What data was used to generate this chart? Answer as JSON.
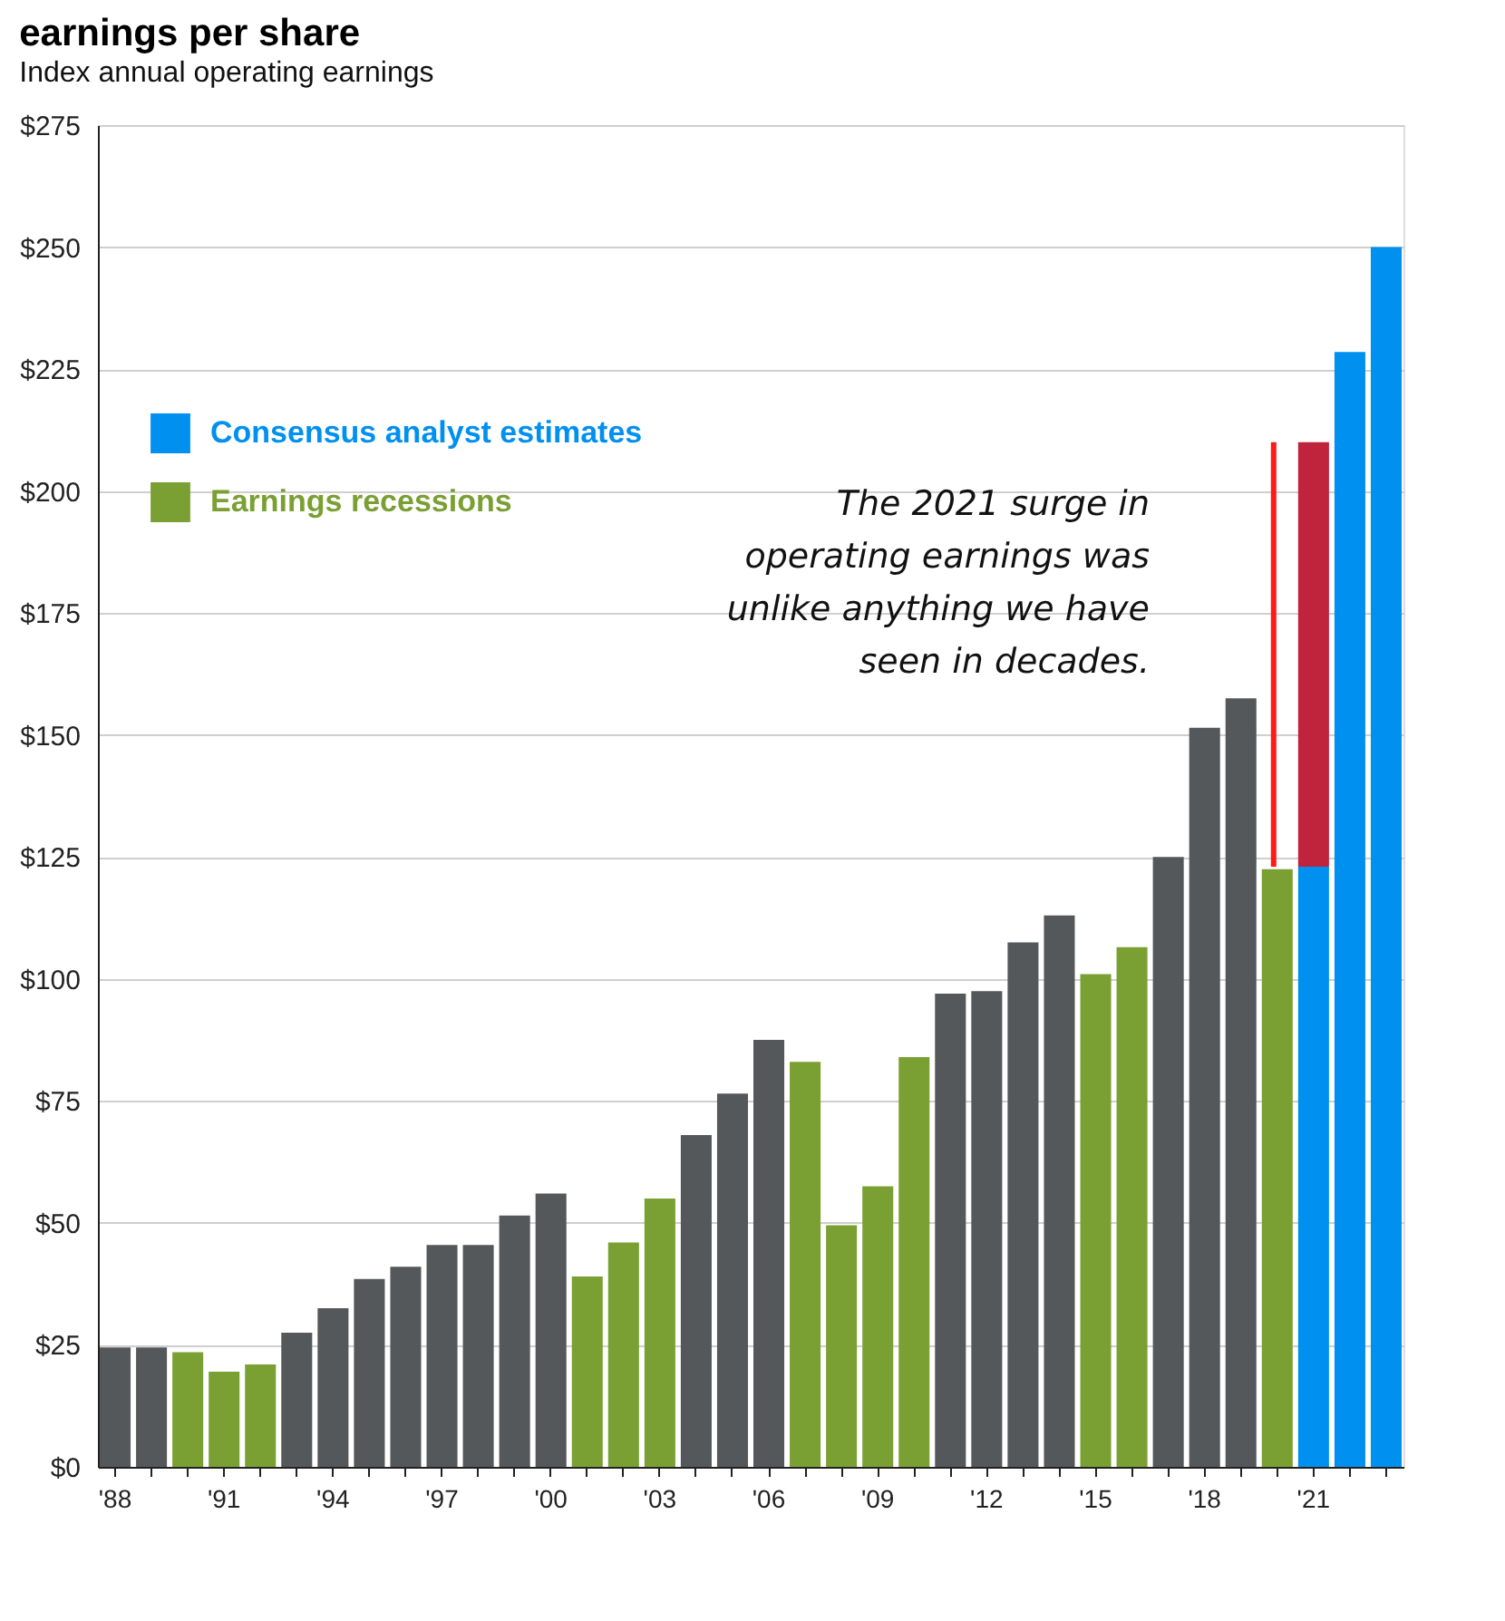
{
  "chart_data": {
    "type": "bar",
    "title": "earnings per share",
    "subtitle": "Index annual operating earnings",
    "categories": [
      "'88",
      null,
      null,
      "'91",
      null,
      null,
      "'94",
      null,
      null,
      "'97",
      null,
      null,
      "'00",
      null,
      null,
      "'03",
      null,
      null,
      "'06",
      null,
      null,
      "'09",
      null,
      null,
      "'12",
      null,
      null,
      "'15",
      null,
      null,
      "'18",
      null,
      null,
      "'21",
      null,
      null
    ],
    "stacked": true,
    "series": [
      {
        "color": "#54585a",
        "values": [
          24.5,
          24.5,
          null,
          null,
          null,
          27.5,
          32.5,
          38.5,
          41,
          45.5,
          45.5,
          51.5,
          56,
          null,
          null,
          null,
          68,
          76.5,
          87.5,
          null,
          null,
          null,
          null,
          97,
          97.5,
          107.5,
          113,
          null,
          null,
          125,
          151.5,
          157.5,
          null,
          null,
          null,
          null
        ]
      },
      {
        "name": "Earnings recessions",
        "color": "#7aa033",
        "values": [
          null,
          null,
          23.5,
          19.5,
          21,
          null,
          null,
          null,
          null,
          null,
          null,
          null,
          null,
          39,
          46,
          55,
          null,
          null,
          null,
          83,
          49.5,
          57.5,
          84,
          null,
          null,
          null,
          null,
          101,
          106.5,
          null,
          null,
          null,
          122.5,
          null,
          null,
          null
        ]
      },
      {
        "name": "Consensus analyst estimates",
        "color": "#0090f0",
        "values": [
          null,
          null,
          null,
          null,
          null,
          null,
          null,
          null,
          null,
          null,
          null,
          null,
          null,
          null,
          null,
          null,
          null,
          null,
          null,
          null,
          null,
          null,
          null,
          null,
          null,
          null,
          null,
          null,
          null,
          null,
          null,
          null,
          null,
          123,
          228.5,
          250
        ]
      },
      {
        "color": "#c0243c",
        "values": [
          null,
          null,
          null,
          null,
          null,
          null,
          null,
          null,
          null,
          null,
          null,
          null,
          null,
          null,
          null,
          null,
          null,
          null,
          null,
          null,
          null,
          null,
          null,
          null,
          null,
          null,
          null,
          null,
          null,
          null,
          null,
          null,
          null,
          87,
          null,
          null
        ]
      }
    ],
    "ylim": [
      0,
      275
    ],
    "yticks": [
      {
        "value": 0,
        "label": "$0"
      },
      {
        "value": 25,
        "label": "$25"
      },
      {
        "value": 50,
        "label": "$50"
      },
      {
        "value": 75,
        "label": "$75"
      },
      {
        "value": 100,
        "label": "$100"
      },
      {
        "value": 125,
        "label": "$125"
      },
      {
        "value": 150,
        "label": "$150"
      },
      {
        "value": 175,
        "label": "$175"
      },
      {
        "value": 200,
        "label": "$200"
      },
      {
        "value": 225,
        "label": "$225"
      },
      {
        "value": 250,
        "label": "$250"
      },
      {
        "value": 275,
        "label": "$275"
      }
    ],
    "grid": "y",
    "legend": "top left",
    "annotations": [
      "The 2021 surge in\noperating earnings was\nunlike anything we have\nseen in decades."
    ]
  }
}
